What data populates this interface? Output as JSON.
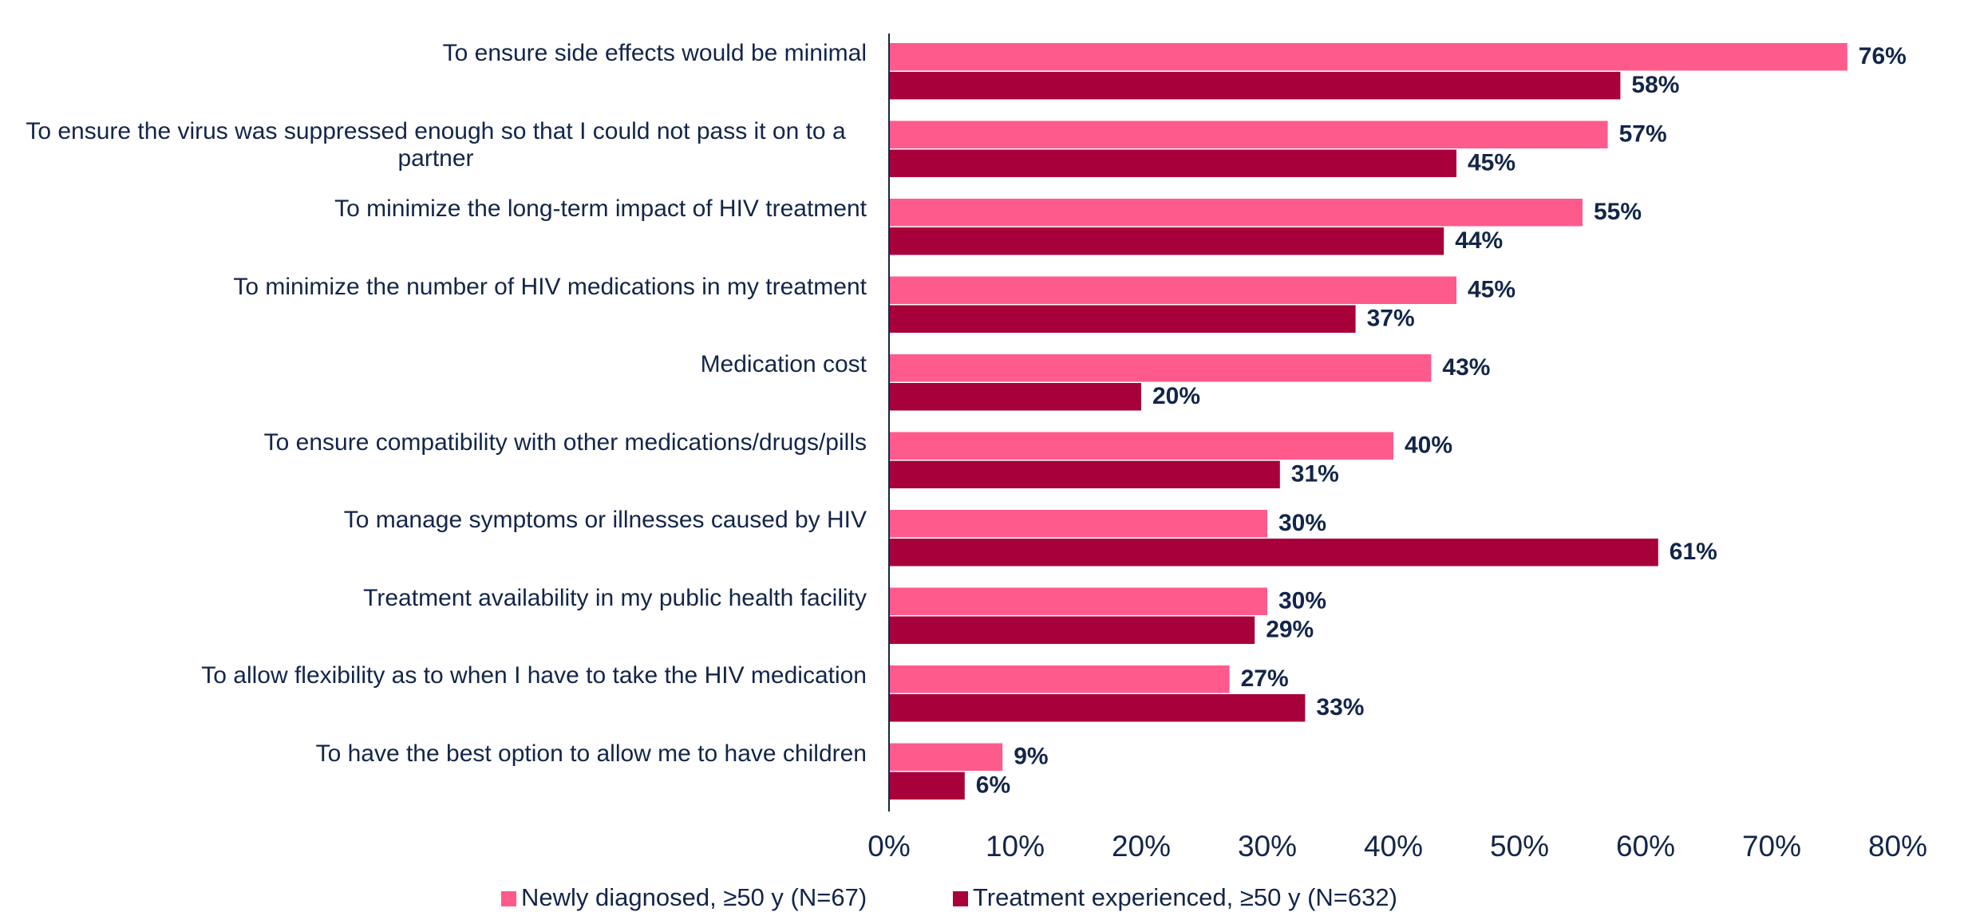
{
  "chart_data": {
    "type": "barh",
    "categories": [
      "To ensure side effects would be minimal",
      "To ensure the virus was suppressed enough so that I could not pass it on to a partner",
      "To minimize the long-term impact of HIV treatment",
      "To minimize the number of HIV medications in my treatment",
      "Medication cost",
      "To ensure compatibility with other medications/drugs/pills",
      "To manage symptoms or illnesses caused by HIV",
      "Treatment availability in my public health facility",
      "To allow flexibility as to when I have to take the HIV medication",
      "To have the best option to allow me to have children"
    ],
    "series": [
      {
        "name": "Newly diagnosed, ≥50 y (N=67)",
        "color": "#ff5a8c",
        "values": [
          76,
          57,
          55,
          45,
          43,
          40,
          30,
          30,
          27,
          9
        ],
        "value_labels": [
          "76%",
          "57%",
          "55%",
          "45%",
          "43%",
          "40%",
          "30%",
          "30%",
          "27%",
          "9%"
        ]
      },
      {
        "name": "Treatment experienced, ≥50 y (N=632)",
        "color": "#a8003a",
        "values": [
          58,
          45,
          44,
          37,
          20,
          31,
          61,
          29,
          33,
          6
        ],
        "value_labels": [
          "58%",
          "45%",
          "44%",
          "37%",
          "20%",
          "31%",
          "61%",
          "29%",
          "33%",
          "6%"
        ]
      }
    ],
    "xlim": [
      0,
      80
    ],
    "xticks": [
      {
        "value": 0,
        "label": "0%"
      },
      {
        "value": 10,
        "label": "10%"
      },
      {
        "value": 20,
        "label": "20%"
      },
      {
        "value": 30,
        "label": "30%"
      },
      {
        "value": 40,
        "label": "40%"
      },
      {
        "value": 50,
        "label": "50%"
      },
      {
        "value": 60,
        "label": "60%"
      },
      {
        "value": 70,
        "label": "70%"
      },
      {
        "value": 80,
        "label": "80%"
      }
    ],
    "legend": "bottom"
  }
}
